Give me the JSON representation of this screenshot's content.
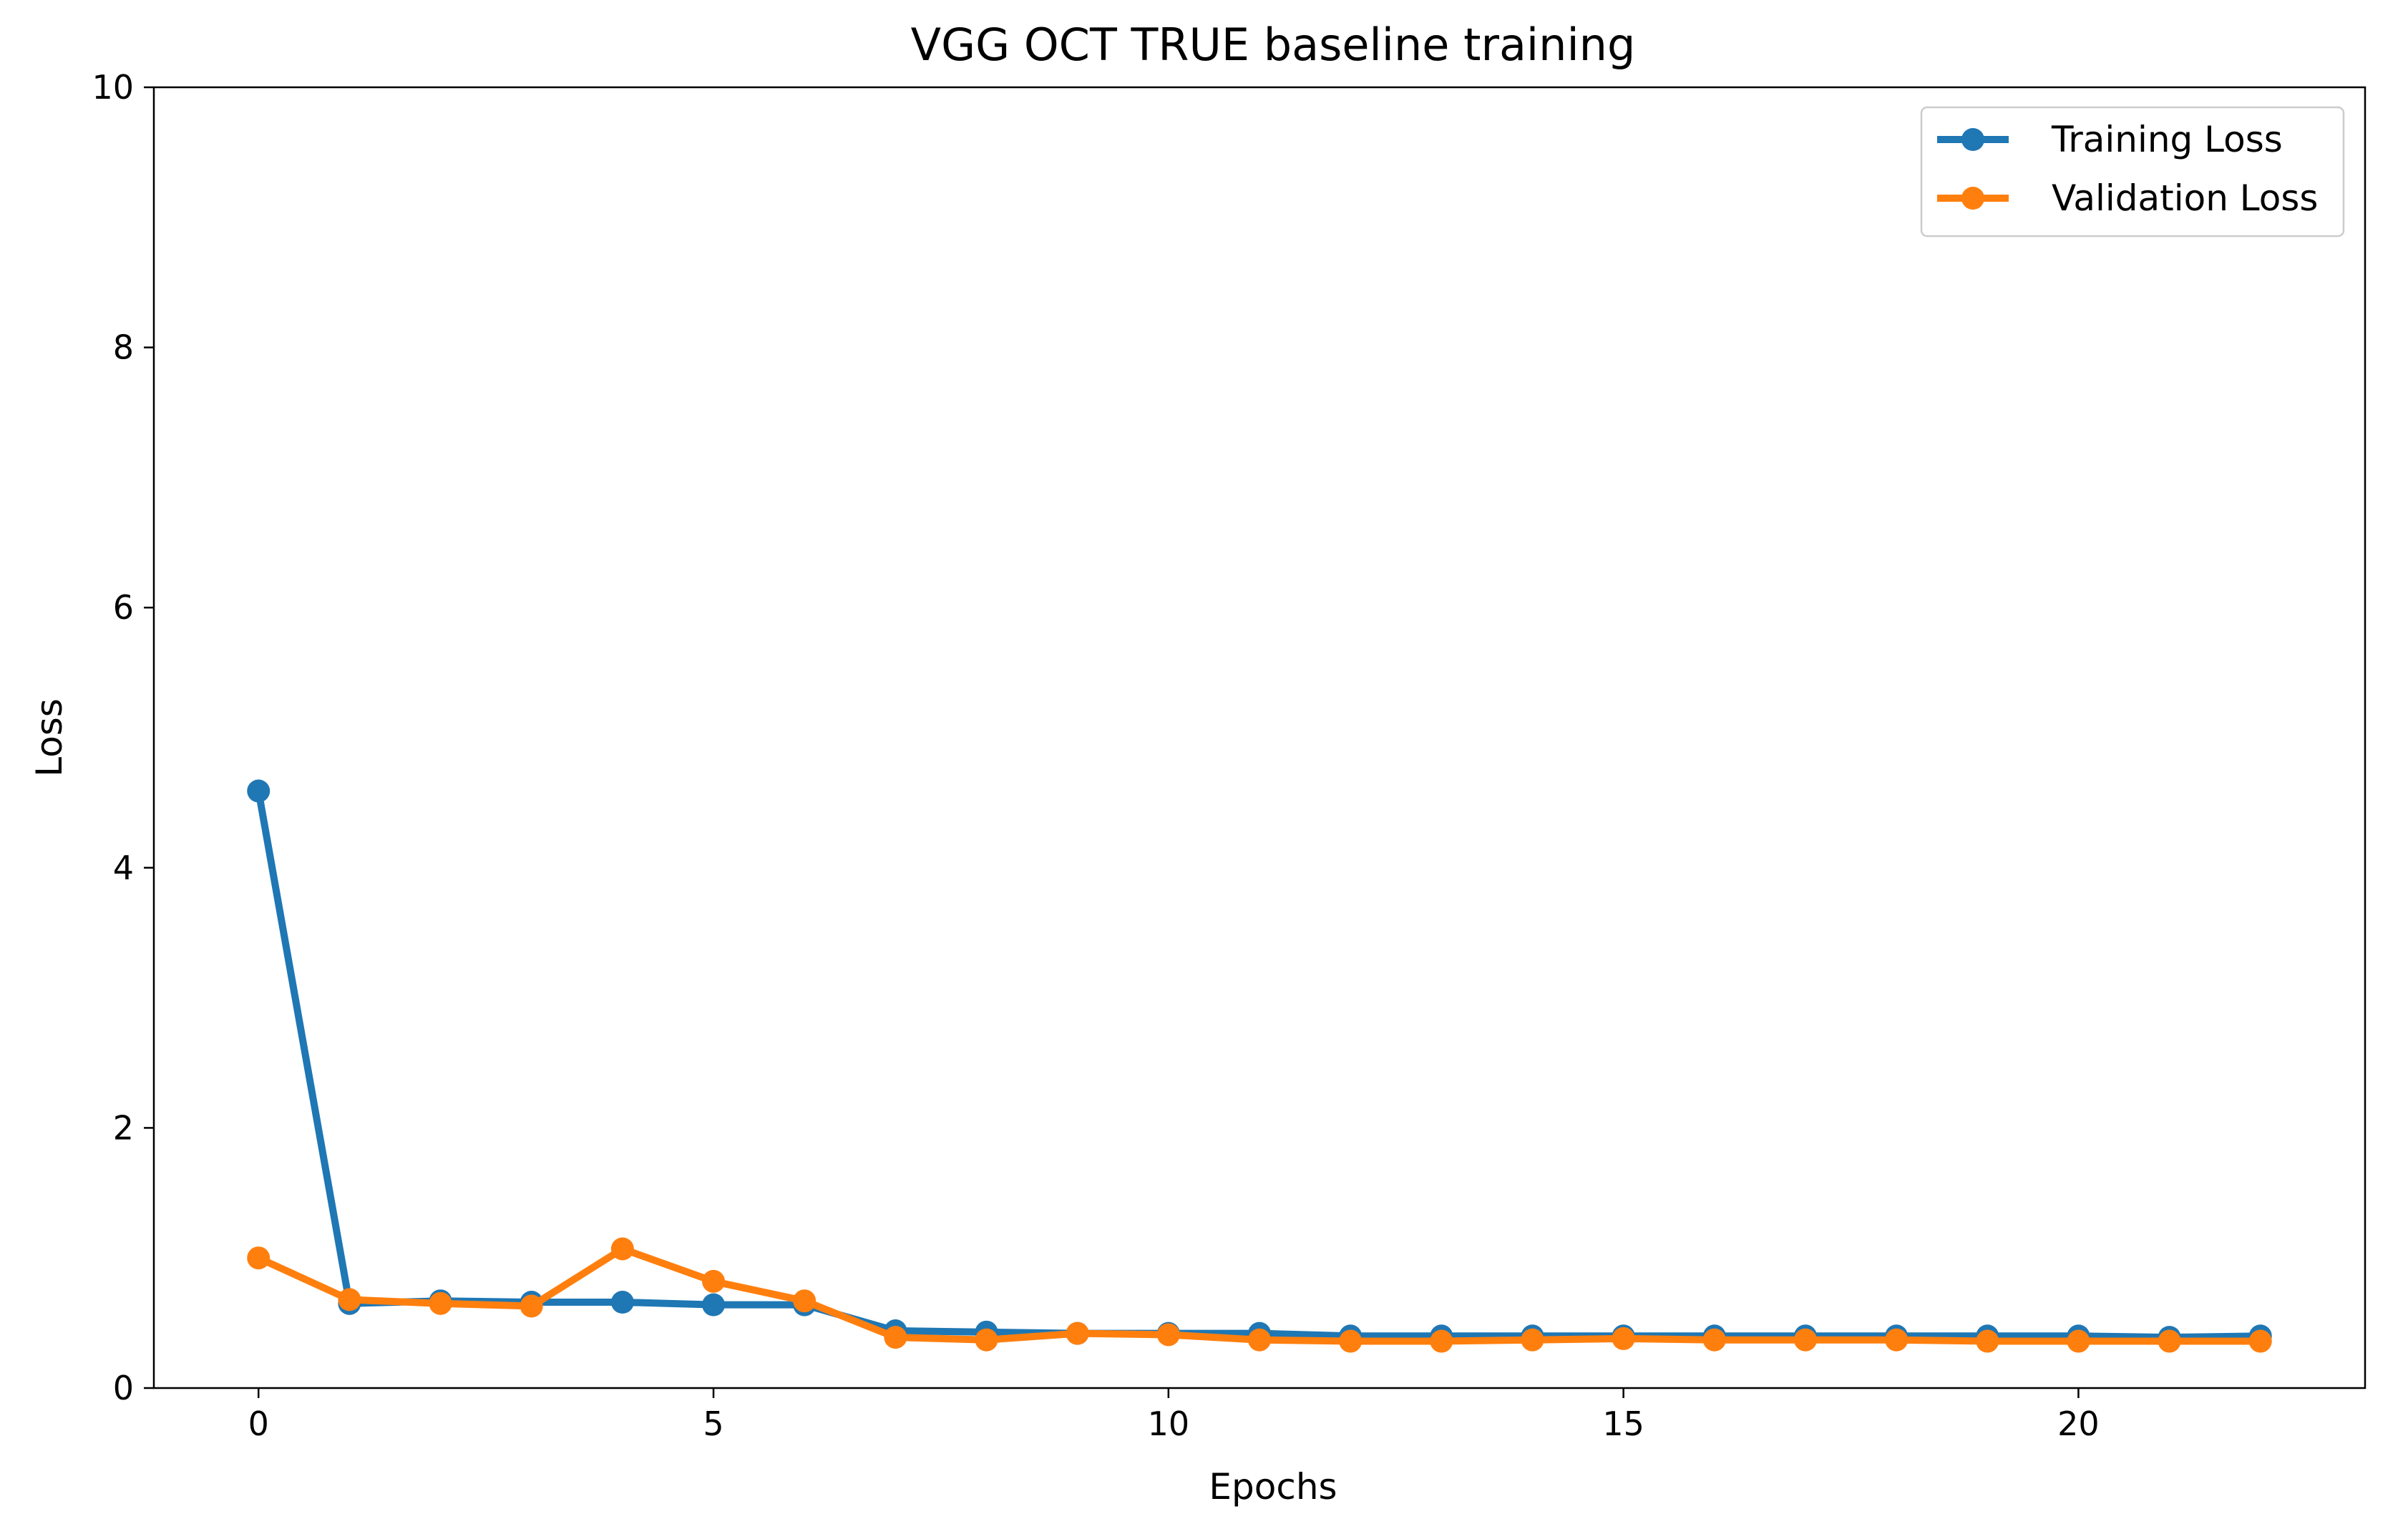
{
  "chart_data": {
    "type": "line",
    "title": "VGG OCT TRUE baseline training",
    "xlabel": "Epochs",
    "ylabel": "Loss",
    "xlim": [
      -1.15,
      23.15
    ],
    "ylim": [
      0,
      10
    ],
    "xticks": [
      0,
      5,
      10,
      15,
      20
    ],
    "xtick_labels": [
      "0",
      "5",
      "10",
      "15",
      "20"
    ],
    "yticks": [
      0,
      2,
      4,
      6,
      8,
      10
    ],
    "ytick_labels": [
      "0",
      "2",
      "4",
      "6",
      "8",
      "10"
    ],
    "x": [
      0,
      1,
      2,
      3,
      4,
      5,
      6,
      7,
      8,
      9,
      10,
      11,
      12,
      13,
      14,
      15,
      16,
      17,
      18,
      19,
      20,
      21,
      22
    ],
    "series": [
      {
        "name": "Training Loss",
        "color": "#1f77b4",
        "values": [
          4.59,
          0.65,
          0.67,
          0.66,
          0.66,
          0.64,
          0.64,
          0.44,
          0.43,
          0.42,
          0.42,
          0.42,
          0.4,
          0.4,
          0.4,
          0.4,
          0.4,
          0.4,
          0.4,
          0.4,
          0.4,
          0.39,
          0.4
        ]
      },
      {
        "name": "Validation Loss",
        "color": "#ff7f0e",
        "values": [
          1.0,
          0.68,
          0.65,
          0.63,
          1.07,
          0.82,
          0.67,
          0.39,
          0.37,
          0.42,
          0.41,
          0.37,
          0.36,
          0.36,
          0.37,
          0.38,
          0.37,
          0.37,
          0.37,
          0.36,
          0.36,
          0.36,
          0.36
        ]
      }
    ],
    "grid": false,
    "legend_position": "top-right"
  }
}
